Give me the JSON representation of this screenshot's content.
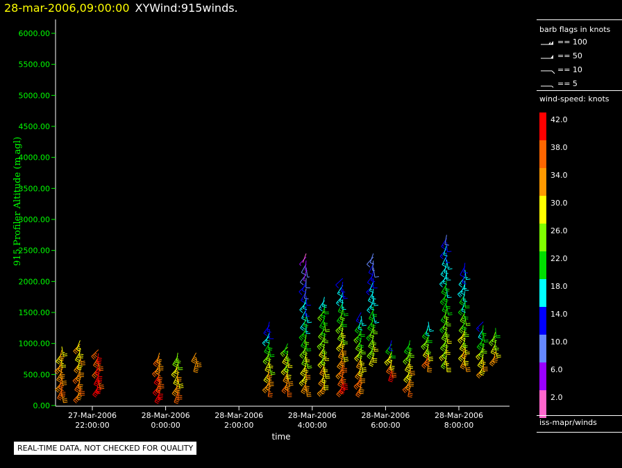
{
  "header": {
    "datetime": "28-mar-2006,09:00:00",
    "title": "XYWind:915winds."
  },
  "notice": "REAL-TIME DATA, NOT CHECKED FOR QUALITY",
  "legend": {
    "barb_title": "barb flags in knots",
    "barbs": [
      {
        "label": "== 100",
        "icon": "barb-flag-100-icon"
      },
      {
        "label": "== 50",
        "icon": "barb-flag-50-icon"
      },
      {
        "label": "== 10",
        "icon": "barb-full-10-icon"
      },
      {
        "label": "== 5",
        "icon": "barb-half-5-icon"
      }
    ],
    "speed_title": "wind-speed: knots",
    "colorbar": [
      {
        "label": "42.0",
        "color": "#ff0000"
      },
      {
        "label": "38.0",
        "color": "#ff6600"
      },
      {
        "label": "34.0",
        "color": "#ff9900"
      },
      {
        "label": "30.0",
        "color": "#ffff00"
      },
      {
        "label": "26.0",
        "color": "#80ff00"
      },
      {
        "label": "22.0",
        "color": "#00dd00"
      },
      {
        "label": "18.0",
        "color": "#00ffff"
      },
      {
        "label": "14.0",
        "color": "#0000ff"
      },
      {
        "label": "10.0",
        "color": "#6688ff"
      },
      {
        "label": "6.0",
        "color": "#9900ff"
      },
      {
        "label": "2.0",
        "color": "#ff66cc"
      }
    ],
    "source": "iss-mapr/winds"
  },
  "chart_data": {
    "type": "scatter",
    "title": "XYWind:915winds.",
    "xlabel": "time",
    "ylabel": "915 Profiler Altitude (m agl)",
    "ylim": [
      0,
      6250
    ],
    "y_ticks": [
      "0.00",
      "500.00",
      "1000.00",
      "1500.00",
      "2000.00",
      "2500.00",
      "3000.00",
      "3500.00",
      "4000.00",
      "4500.00",
      "5000.00",
      "5500.00",
      "6000.00"
    ],
    "x_ticks": [
      {
        "date": "27-Mar-2006",
        "time": "22:00:00"
      },
      {
        "date": "28-Mar-2006",
        "time": "0:00:00"
      },
      {
        "date": "28-Mar-2006",
        "time": "2:00:00"
      },
      {
        "date": "28-Mar-2006",
        "time": "4:00:00"
      },
      {
        "date": "28-Mar-2006",
        "time": "6:00:00"
      },
      {
        "date": "28-Mar-2006",
        "time": "8:00:00"
      }
    ],
    "grid": false,
    "profiles": [
      {
        "time": "27-Mar-2006 21:10",
        "alt": [
          200,
          950
        ],
        "speed": [
          30,
          38
        ]
      },
      {
        "time": "27-Mar-2006 21:40",
        "alt": [
          200,
          1050
        ],
        "speed": [
          30,
          38
        ]
      },
      {
        "time": "27-Mar-2006 22:10",
        "alt": [
          300,
          900
        ],
        "speed": [
          38,
          42
        ]
      },
      {
        "time": "27-Mar-2006 23:50",
        "alt": [
          200,
          850
        ],
        "speed": [
          34,
          42
        ]
      },
      {
        "time": "28-Mar-2006 00:20",
        "alt": [
          200,
          850
        ],
        "speed": [
          24,
          38
        ]
      },
      {
        "time": "28-Mar-2006 00:50",
        "alt": [
          700,
          850
        ],
        "speed": [
          34,
          38
        ]
      },
      {
        "time": "28-Mar-2006 02:50",
        "alt": [
          300,
          1350
        ],
        "speed": [
          14,
          38
        ]
      },
      {
        "time": "28-Mar-2006 03:20",
        "alt": [
          300,
          1000
        ],
        "speed": [
          24,
          38
        ]
      },
      {
        "time": "28-Mar-2006 03:50",
        "alt": [
          300,
          2450
        ],
        "speed": [
          6,
          34
        ]
      },
      {
        "time": "28-Mar-2006 04:20",
        "alt": [
          300,
          1750
        ],
        "speed": [
          20,
          34
        ]
      },
      {
        "time": "28-Mar-2006 04:50",
        "alt": [
          300,
          2050
        ],
        "speed": [
          14,
          42
        ]
      },
      {
        "time": "28-Mar-2006 05:20",
        "alt": [
          300,
          1500
        ],
        "speed": [
          18,
          38
        ]
      },
      {
        "time": "28-Mar-2006 05:40",
        "alt": [
          800,
          2450
        ],
        "speed": [
          10,
          30
        ]
      },
      {
        "time": "28-Mar-2006 06:10",
        "alt": [
          550,
          1050
        ],
        "speed": [
          18,
          42
        ]
      },
      {
        "time": "28-Mar-2006 06:40",
        "alt": [
          300,
          1050
        ],
        "speed": [
          22,
          38
        ]
      },
      {
        "time": "28-Mar-2006 07:10",
        "alt": [
          700,
          1350
        ],
        "speed": [
          18,
          38
        ]
      },
      {
        "time": "28-Mar-2006 07:40",
        "alt": [
          700,
          2750
        ],
        "speed": [
          14,
          30
        ]
      },
      {
        "time": "28-Mar-2006 08:10",
        "alt": [
          700,
          2300
        ],
        "speed": [
          14,
          34
        ]
      },
      {
        "time": "28-Mar-2006 08:40",
        "alt": [
          600,
          1350
        ],
        "speed": [
          18,
          34
        ]
      },
      {
        "time": "28-Mar-2006 09:00",
        "alt": [
          800,
          1250
        ],
        "speed": [
          22,
          34
        ]
      }
    ]
  }
}
